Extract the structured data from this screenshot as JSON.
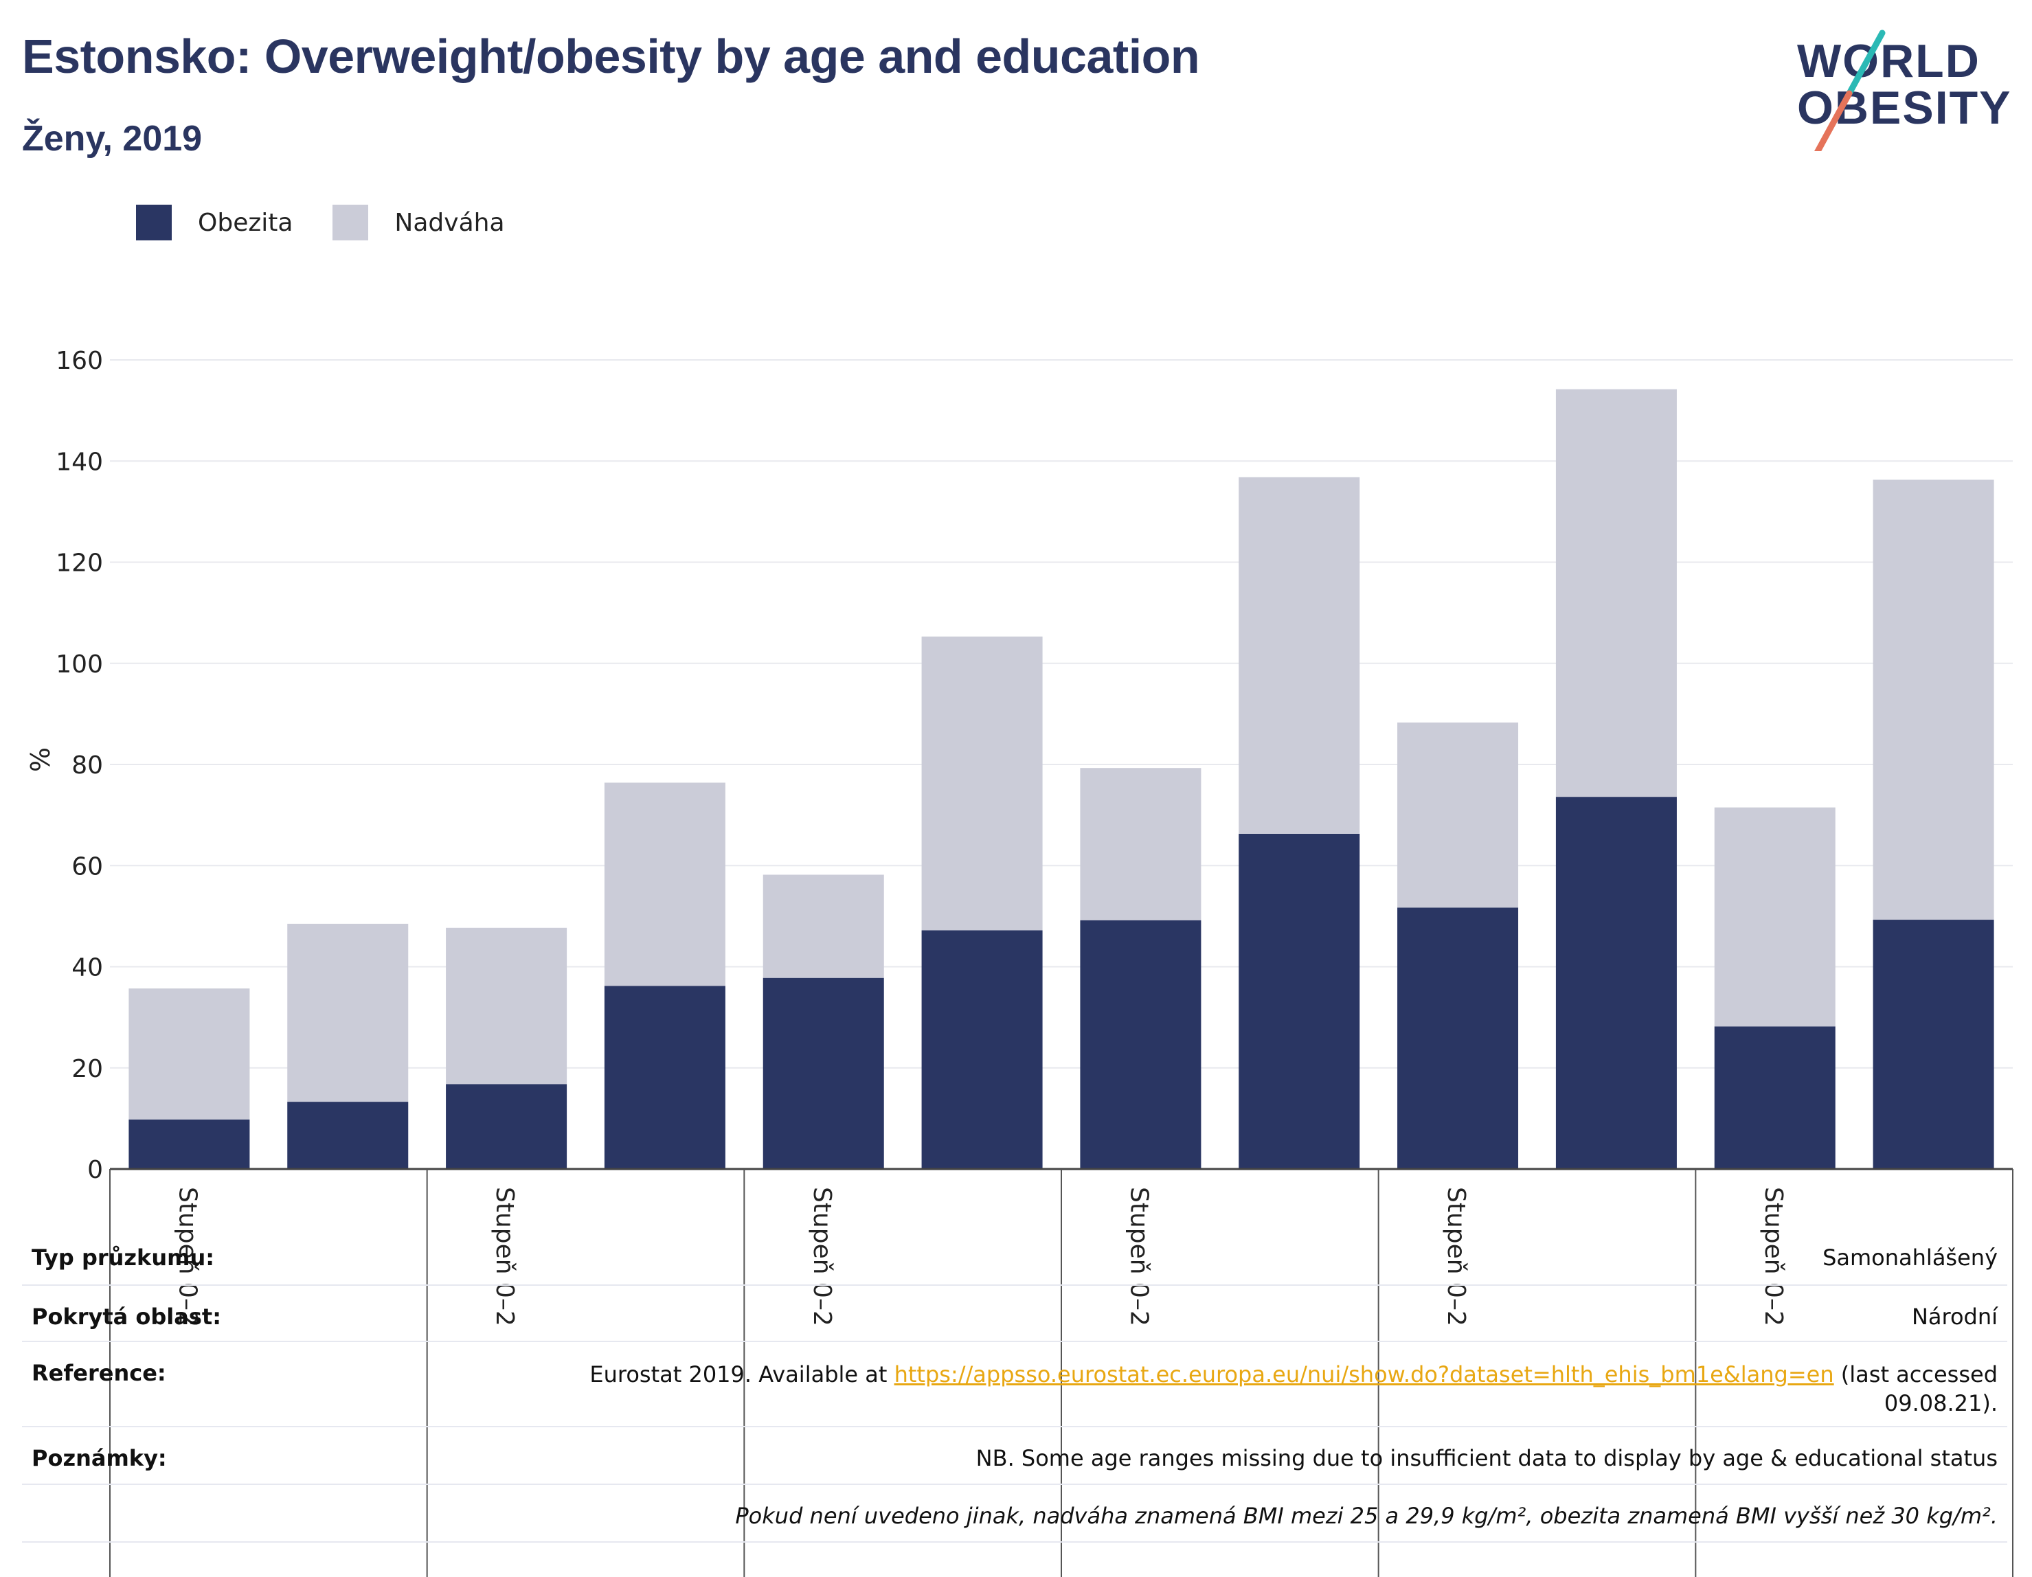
{
  "header": {
    "title": "Estonsko: Overweight/obesity by age and education",
    "subtitle": "Ženy, 2019"
  },
  "logo": {
    "line1": "WORLD",
    "line2": "OBESITY"
  },
  "legend": [
    {
      "label": "Obezita",
      "color": "#2a3663"
    },
    {
      "label": "Nadváha",
      "color": "#cbccd8"
    }
  ],
  "chart_data": {
    "type": "bar",
    "stacked": true,
    "ylabel": "%",
    "ylim": [
      0,
      160
    ],
    "yticks": [
      0,
      20,
      40,
      60,
      80,
      100,
      120,
      140,
      160
    ],
    "grid": true,
    "legend_position": "top-left",
    "group_labels": [
      "Stupeň 0–2",
      "Stupeň 0–2",
      "Stupeň 0–2",
      "Stupeň 0–2",
      "Stupeň 0–2",
      "Stupeň 0–2"
    ],
    "series": [
      {
        "name": "Obezita",
        "color": "#2a3663",
        "values": [
          9.8,
          13.3,
          16.8,
          36.2,
          37.8,
          47.2,
          49.2,
          66.3,
          51.7,
          73.6,
          28.2,
          49.3
        ]
      },
      {
        "name": "Nadváha",
        "color": "#cbccd8",
        "values": [
          25.9,
          35.2,
          30.9,
          40.2,
          20.4,
          58.1,
          30.1,
          70.5,
          36.6,
          80.6,
          43.3,
          87.0
        ]
      }
    ]
  },
  "footer": {
    "survey_type_label": "Typ průzkumu:",
    "survey_type_value": "Samonahlášený",
    "coverage_label": "Pokrytá oblast:",
    "coverage_value": "Národní",
    "reference_label": "Reference:",
    "reference_prefix": "Eurostat 2019. Available at ",
    "reference_link": "https://appsso.eurostat.ec.europa.eu/nui/show.do?dataset=hlth_ehis_bm1e&lang=en",
    "reference_suffix": " (last accessed",
    "reference_date": "09.08.21).",
    "notes_label": "Poznámky:",
    "notes_value": "NB. Some age ranges missing due to insufficient data to display by age & educational status",
    "definition_note": "Pokud není uvedeno jinak, nadváha znamená BMI mezi 25 a 29,9 kg/m², obezita znamená BMI vyšší než 30 kg/m²."
  }
}
